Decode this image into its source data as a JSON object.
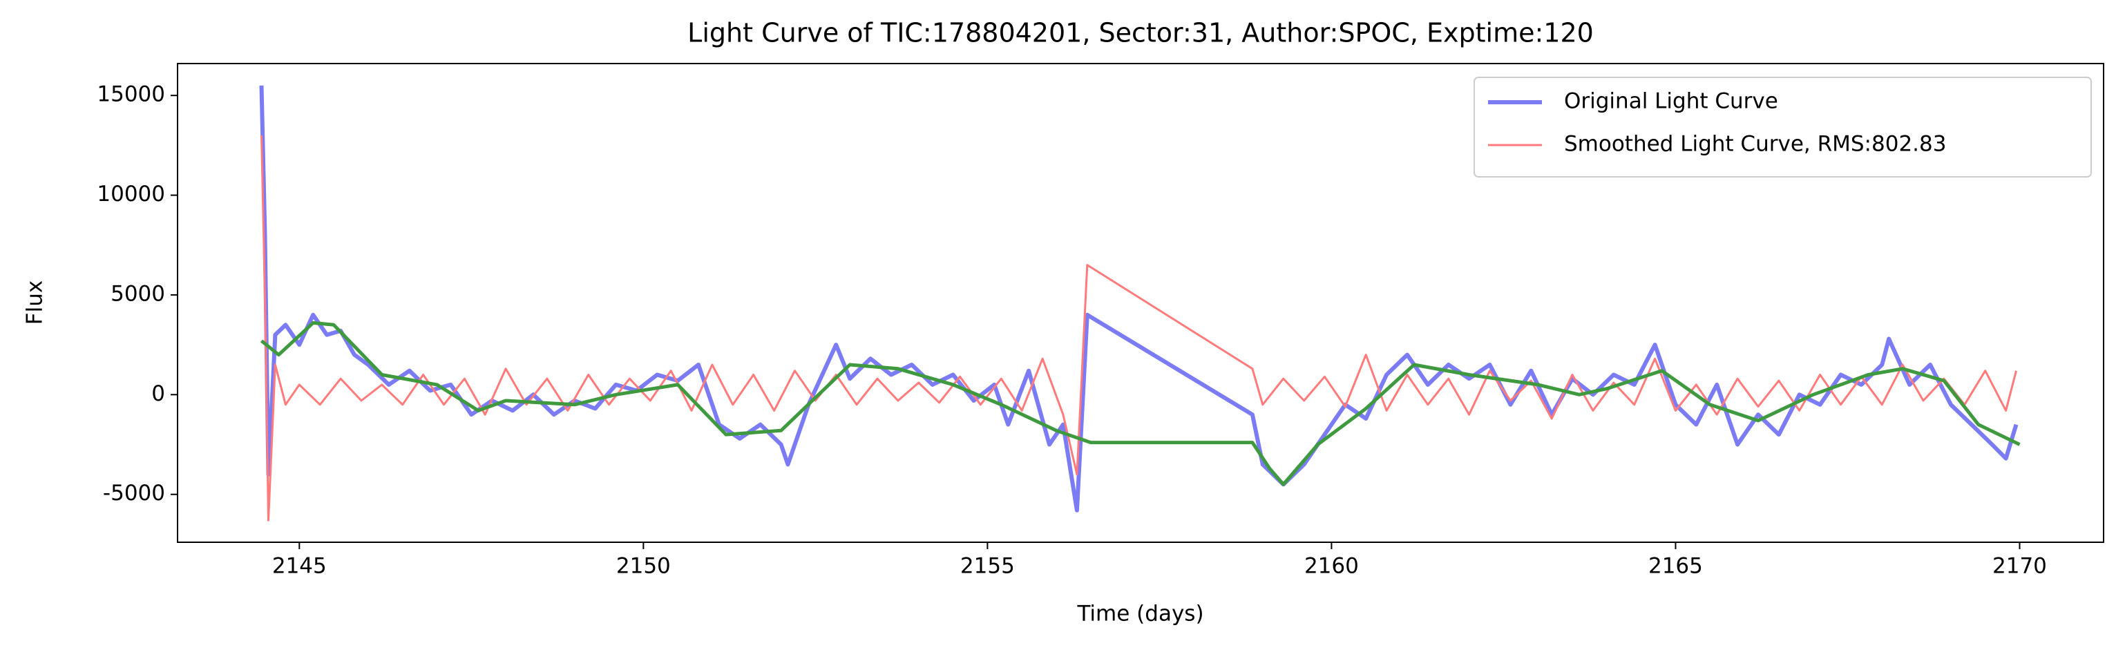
{
  "chart_data": {
    "type": "line",
    "title": "Light Curve of TIC:178804201, Sector:31, Author:SPOC, Exptime:120",
    "x_label": "Time (days)",
    "y_label": "Flux",
    "xlim": [
      2143.23,
      2171.22
    ],
    "ylim": [
      -7400,
      16600
    ],
    "xticks": [
      2145,
      2150,
      2155,
      2160,
      2165,
      2170
    ],
    "yticks": [
      -5000,
      0,
      5000,
      10000,
      15000
    ],
    "grid": false,
    "legend": "upper right",
    "series": [
      {
        "name": "Original Light Curve",
        "color": "#7b7bf4",
        "x": [
          2144.45,
          2144.5,
          2144.55,
          2144.65,
          2144.8,
          2145.0,
          2145.2,
          2145.4,
          2145.6,
          2145.8,
          2146.0,
          2146.3,
          2146.6,
          2146.9,
          2147.2,
          2147.5,
          2147.8,
          2148.1,
          2148.4,
          2148.7,
          2149.0,
          2149.3,
          2149.6,
          2149.9,
          2150.2,
          2150.5,
          2150.8,
          2151.1,
          2151.4,
          2151.7,
          2152.0,
          2152.1,
          2152.4,
          2152.8,
          2153.0,
          2153.3,
          2153.6,
          2153.9,
          2154.2,
          2154.5,
          2154.8,
          2155.1,
          2155.3,
          2155.6,
          2155.9,
          2156.1,
          2156.3,
          2156.45,
          2158.85,
          2159.0,
          2159.3,
          2159.6,
          2159.9,
          2160.2,
          2160.5,
          2160.8,
          2161.1,
          2161.4,
          2161.7,
          2162.0,
          2162.3,
          2162.6,
          2162.9,
          2163.2,
          2163.5,
          2163.8,
          2164.1,
          2164.4,
          2164.7,
          2165.0,
          2165.3,
          2165.6,
          2165.9,
          2166.2,
          2166.5,
          2166.8,
          2167.1,
          2167.4,
          2167.7,
          2168.0,
          2168.1,
          2168.4,
          2168.7,
          2169.0,
          2169.3,
          2169.6,
          2169.8,
          2169.95
        ],
        "values": [
          15500,
          8000,
          -4000,
          3000,
          3500,
          2500,
          4000,
          3000,
          3200,
          2000,
          1500,
          500,
          1200,
          200,
          500,
          -1000,
          -300,
          -800,
          0,
          -1000,
          -300,
          -700,
          500,
          200,
          1000,
          700,
          1500,
          -1500,
          -2200,
          -1500,
          -2500,
          -3500,
          -500,
          2500,
          800,
          1800,
          1000,
          1500,
          500,
          1000,
          -300,
          500,
          -1500,
          1200,
          -2500,
          -1500,
          -5800,
          4000,
          -1000,
          -3500,
          -4500,
          -3500,
          -2000,
          -500,
          -1200,
          1000,
          2000,
          500,
          1500,
          800,
          1500,
          -500,
          1200,
          -1000,
          800,
          0,
          1000,
          500,
          2500,
          -500,
          -1500,
          500,
          -2500,
          -1000,
          -2000,
          0,
          -500,
          1000,
          500,
          1500,
          2800,
          500,
          1500,
          -500,
          -1500,
          -2500,
          -3200,
          -1500
        ]
      },
      {
        "name": "Smoothed Light Curve, RMS:802.83",
        "color": "#ff7b7b",
        "x": [
          2144.45,
          2144.5,
          2144.55,
          2144.65,
          2144.8,
          2145.0,
          2145.3,
          2145.6,
          2145.9,
          2146.2,
          2146.5,
          2146.8,
          2147.1,
          2147.4,
          2147.7,
          2148.0,
          2148.3,
          2148.6,
          2148.9,
          2149.2,
          2149.5,
          2149.8,
          2150.1,
          2150.4,
          2150.7,
          2151.0,
          2151.3,
          2151.6,
          2151.9,
          2152.2,
          2152.5,
          2152.8,
          2153.1,
          2153.4,
          2153.7,
          2154.0,
          2154.3,
          2154.6,
          2154.9,
          2155.2,
          2155.5,
          2155.8,
          2156.1,
          2156.3,
          2156.45,
          2158.85,
          2159.0,
          2159.3,
          2159.6,
          2159.9,
          2160.2,
          2160.5,
          2160.8,
          2161.1,
          2161.4,
          2161.7,
          2162.0,
          2162.3,
          2162.6,
          2162.9,
          2163.2,
          2163.5,
          2163.8,
          2164.1,
          2164.4,
          2164.7,
          2165.0,
          2165.3,
          2165.6,
          2165.9,
          2166.2,
          2166.5,
          2166.8,
          2167.1,
          2167.4,
          2167.7,
          2168.0,
          2168.3,
          2168.6,
          2168.9,
          2169.2,
          2169.5,
          2169.8,
          2169.95
        ],
        "values": [
          13000,
          5000,
          -6300,
          1500,
          -500,
          500,
          -500,
          800,
          -300,
          500,
          -500,
          1000,
          -500,
          800,
          -1000,
          1300,
          -500,
          800,
          -800,
          1000,
          -500,
          800,
          -300,
          1200,
          -800,
          1500,
          -500,
          1000,
          -800,
          1200,
          -300,
          1000,
          -500,
          800,
          -300,
          600,
          -400,
          900,
          -500,
          800,
          -800,
          1800,
          -1000,
          -4000,
          6500,
          1300,
          -500,
          800,
          -300,
          900,
          -600,
          2000,
          -800,
          1000,
          -500,
          800,
          -1000,
          1200,
          -300,
          700,
          -1200,
          1000,
          -800,
          600,
          -500,
          1800,
          -800,
          500,
          -1000,
          800,
          -600,
          700,
          -800,
          1000,
          -500,
          900,
          -500,
          1500,
          -300,
          800,
          -500,
          1200,
          -800,
          1200
        ]
      },
      {
        "color": "#3f9a3f",
        "x": [
          2144.45,
          2144.7,
          2145.2,
          2145.5,
          2146.2,
          2147.0,
          2147.6,
          2148.0,
          2149.0,
          2149.6,
          2150.5,
          2151.2,
          2152.0,
          2153.0,
          2153.7,
          2154.5,
          2155.2,
          2156.0,
          2156.5,
          2158.85,
          2159.1,
          2159.3,
          2159.8,
          2160.5,
          2161.2,
          2162.0,
          2163.0,
          2163.6,
          2164.0,
          2164.8,
          2165.5,
          2166.2,
          2167.0,
          2167.8,
          2168.3,
          2168.9,
          2169.4,
          2170.0
        ],
        "values": [
          2700,
          2000,
          3600,
          3500,
          1000,
          500,
          -800,
          -300,
          -500,
          0,
          500,
          -2000,
          -1800,
          1500,
          1300,
          500,
          -500,
          -1800,
          -2400,
          -2400,
          -3700,
          -4500,
          -2500,
          -700,
          1500,
          1000,
          500,
          0,
          300,
          1200,
          -500,
          -1300,
          0,
          1000,
          1300,
          700,
          -1500,
          -2500
        ]
      }
    ]
  }
}
